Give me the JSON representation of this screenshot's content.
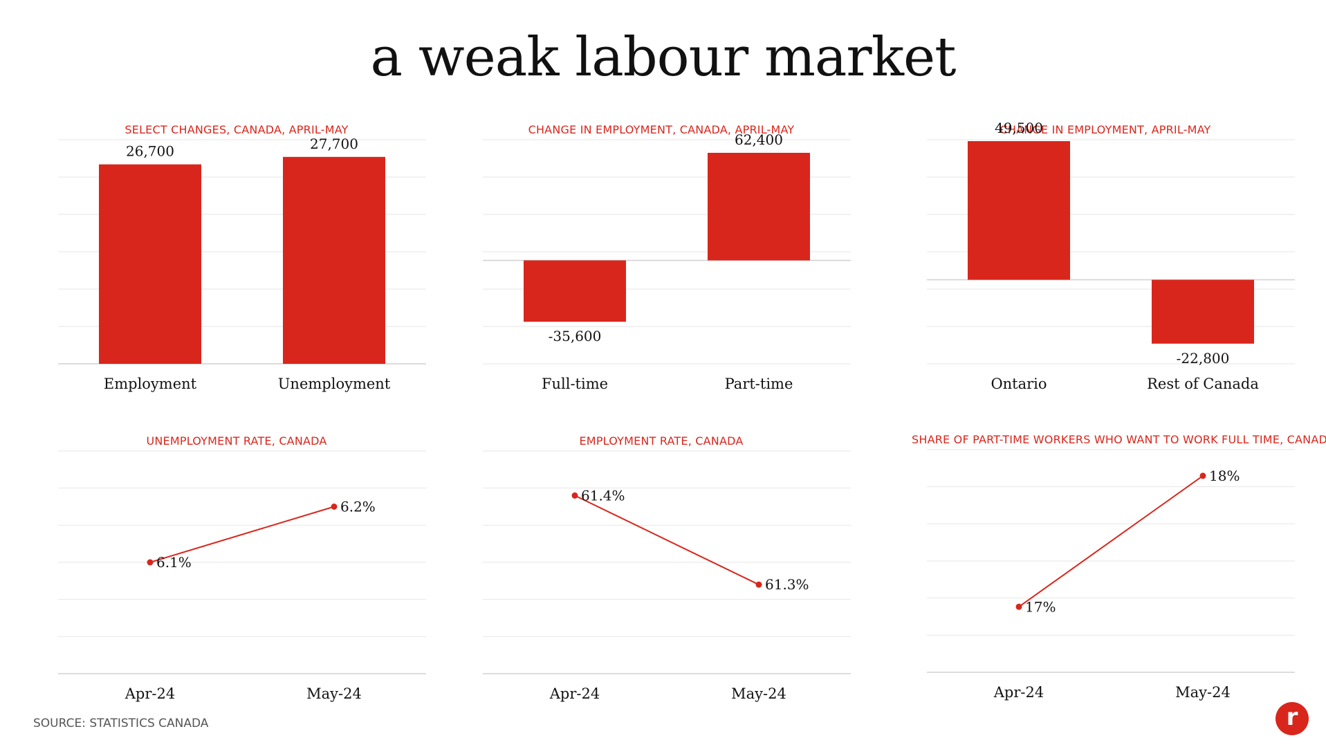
{
  "title": "a weak labour market",
  "source": "SOURCE: STATISTICS CANADA",
  "logo_text": "r",
  "colors": {
    "accent": "#d9261c",
    "grid": "#e6e6e6",
    "axis": "#d0d0d0",
    "text": "#111111"
  },
  "chart_data": [
    {
      "type": "bar",
      "title": "SELECT CHANGES, CANADA, APRIL-MAY",
      "categories": [
        "Employment",
        "Unemployment"
      ],
      "values": [
        26700,
        27700
      ],
      "value_labels": [
        "26,700",
        "27,700"
      ],
      "ylim": [
        0,
        30000
      ],
      "grid": true
    },
    {
      "type": "bar",
      "title": "CHANGE IN EMPLOYMENT, CANADA, APRIL-MAY",
      "categories": [
        "Full-time",
        "Part-time"
      ],
      "values": [
        -35600,
        62400
      ],
      "value_labels": [
        "-35,600",
        "62,400"
      ],
      "ylim": [
        -60000,
        70000
      ],
      "grid": true
    },
    {
      "type": "bar",
      "title": "CHANGE IN EMPLOYMENT, APRIL-MAY",
      "categories": [
        "Ontario",
        "Rest of Canada"
      ],
      "values": [
        49500,
        -22800
      ],
      "value_labels": [
        "49,500",
        "-22,800"
      ],
      "ylim": [
        -30000,
        50000
      ],
      "grid": true
    },
    {
      "type": "line",
      "title": "UNEMPLOYMENT RATE, CANADA",
      "categories": [
        "Apr-24",
        "May-24"
      ],
      "values": [
        6.1,
        6.2
      ],
      "value_labels": [
        "6.1%",
        "6.2%"
      ],
      "ylim": [
        5.9,
        6.3
      ],
      "grid": true
    },
    {
      "type": "line",
      "title": "EMPLOYMENT RATE, CANADA",
      "categories": [
        "Apr-24",
        "May-24"
      ],
      "values": [
        61.4,
        61.3
      ],
      "value_labels": [
        "61.4%",
        "61.3%"
      ],
      "ylim": [
        61.2,
        61.45
      ],
      "grid": true
    },
    {
      "type": "line",
      "title": "SHARE OF PART-TIME WORKERS WHO WANT TO WORK FULL TIME, CANADA",
      "categories": [
        "Apr-24",
        "May-24"
      ],
      "values": [
        17,
        18
      ],
      "value_labels": [
        "17%",
        "18%"
      ],
      "ylim": [
        16.5,
        18.2
      ],
      "grid": true
    }
  ]
}
